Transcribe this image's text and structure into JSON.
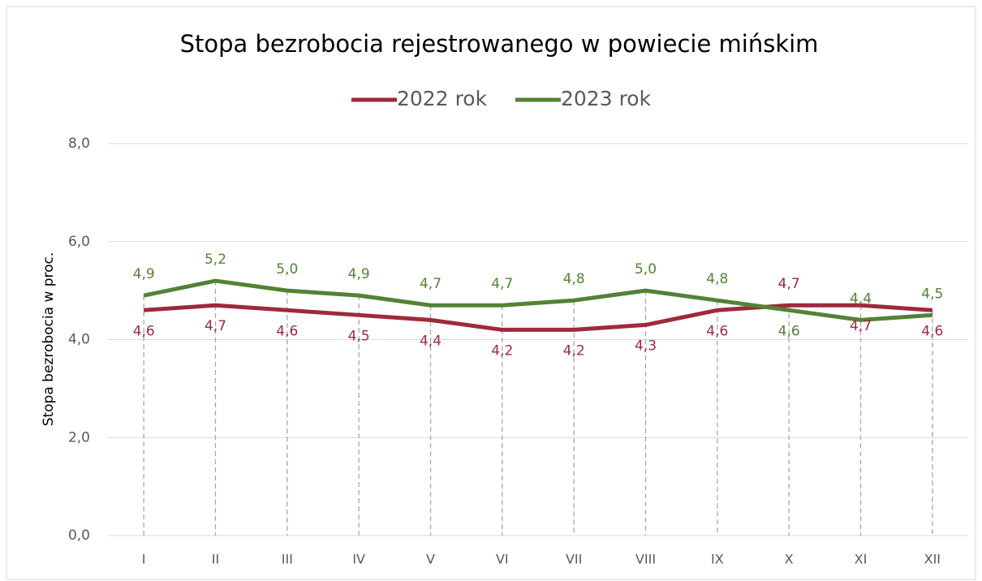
{
  "chart_data": {
    "type": "line",
    "title": "Stopa bezrobocia rejestrowanego w powiecie mińskim",
    "y_label": "Stopa bezrobocia w proc.",
    "categories": [
      "I",
      "II",
      "III",
      "IV",
      "V",
      "VI",
      "VII",
      "VIII",
      "IX",
      "X",
      "XI",
      "XII"
    ],
    "series": [
      {
        "name": "2022 rok",
        "color": "#9e2a3b",
        "values": [
          4.6,
          4.7,
          4.6,
          4.5,
          4.4,
          4.2,
          4.2,
          4.3,
          4.6,
          4.7,
          4.7,
          4.6
        ],
        "value_labels": [
          "4,6",
          "4,7",
          "4,6",
          "4,5",
          "4,4",
          "4,2",
          "4,2",
          "4,3",
          "4,6",
          "4,7",
          "4,7",
          "4,6"
        ]
      },
      {
        "name": "2023 rok",
        "color": "#548235",
        "values": [
          4.9,
          5.2,
          5.0,
          4.9,
          4.7,
          4.7,
          4.8,
          5.0,
          4.8,
          4.6,
          4.4,
          4.5
        ],
        "value_labels": [
          "4,9",
          "5,2",
          "5,0",
          "4,9",
          "4,7",
          "4,7",
          "4,8",
          "5,0",
          "4,8",
          "4,6",
          "4,4",
          "4,5"
        ]
      }
    ],
    "ylim": [
      0,
      8
    ],
    "yticks": [
      {
        "value": 0,
        "label": "0,0"
      },
      {
        "value": 2,
        "label": "2,0"
      },
      {
        "value": 4,
        "label": "4,0"
      },
      {
        "value": 6,
        "label": "6,0"
      },
      {
        "value": 8,
        "label": "8,0"
      }
    ],
    "grid": true,
    "legend": "top"
  }
}
